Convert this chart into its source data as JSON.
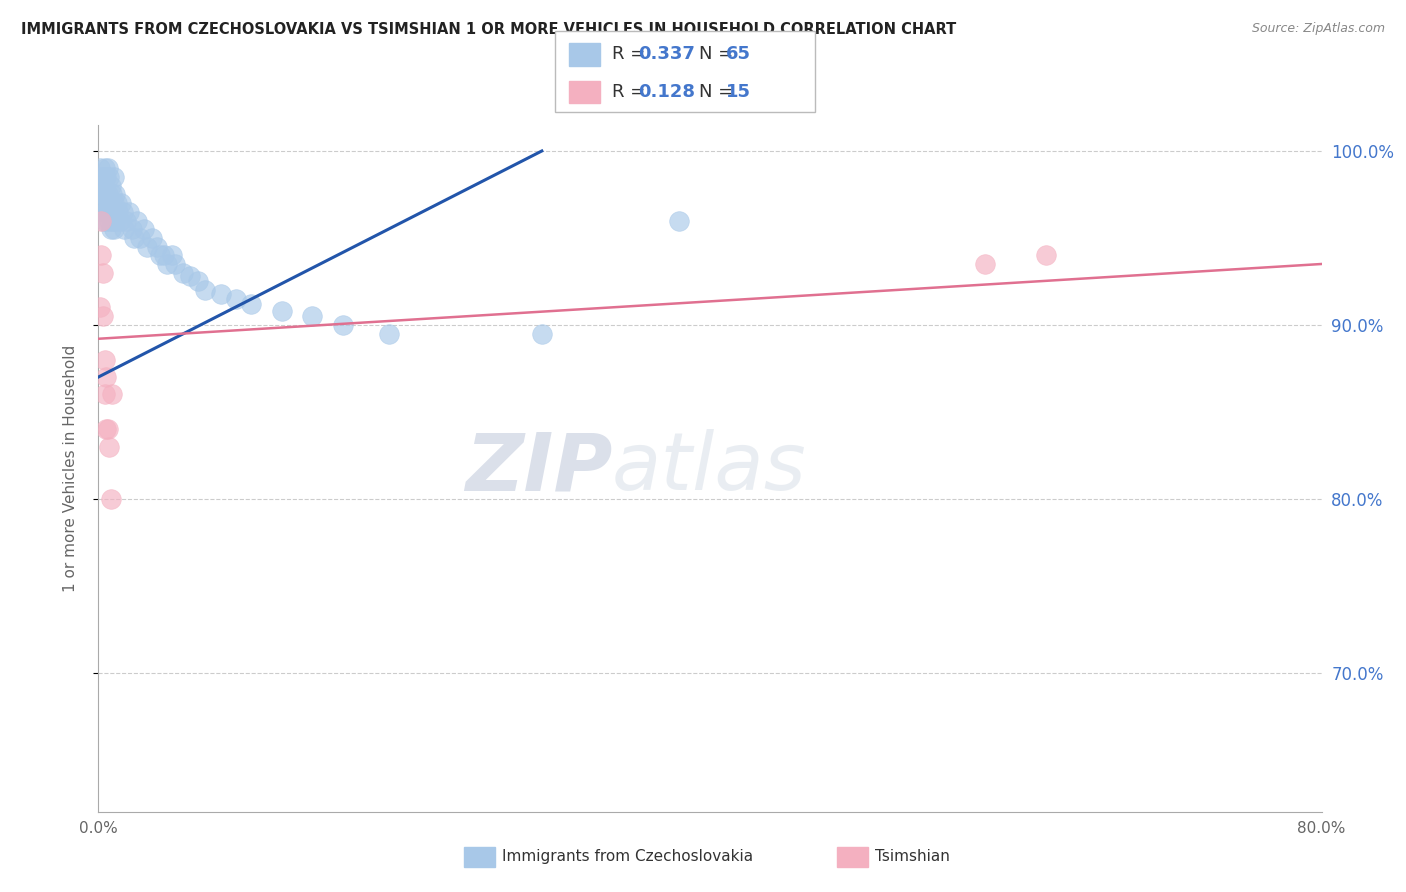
{
  "title": "IMMIGRANTS FROM CZECHOSLOVAKIA VS TSIMSHIAN 1 OR MORE VEHICLES IN HOUSEHOLD CORRELATION CHART",
  "source": "Source: ZipAtlas.com",
  "ylabel": "1 or more Vehicles in Household",
  "xlim": [
    0.0,
    0.8
  ],
  "ylim": [
    0.62,
    1.015
  ],
  "blue_R": "0.337",
  "blue_N": "65",
  "pink_R": "0.128",
  "pink_N": "15",
  "blue_color": "#a8c8e8",
  "pink_color": "#f4b0c0",
  "blue_line_color": "#2255aa",
  "pink_line_color": "#e07090",
  "legend_label_blue": "Immigrants from Czechoslovakia",
  "legend_label_pink": "Tsimshian",
  "watermark_zip": "ZIP",
  "watermark_atlas": "atlas",
  "grid_color": "#cccccc",
  "background_color": "#ffffff",
  "right_yticklabels": [
    "70.0%",
    "80.0%",
    "90.0%",
    "100.0%"
  ],
  "right_yticks": [
    0.7,
    0.8,
    0.9,
    1.0
  ],
  "blue_scatter_x": [
    0.001,
    0.001,
    0.002,
    0.002,
    0.002,
    0.003,
    0.003,
    0.003,
    0.004,
    0.004,
    0.004,
    0.004,
    0.005,
    0.005,
    0.005,
    0.006,
    0.006,
    0.006,
    0.007,
    0.007,
    0.007,
    0.008,
    0.008,
    0.008,
    0.009,
    0.009,
    0.01,
    0.01,
    0.01,
    0.011,
    0.011,
    0.012,
    0.013,
    0.014,
    0.015,
    0.016,
    0.017,
    0.018,
    0.02,
    0.022,
    0.023,
    0.025,
    0.027,
    0.03,
    0.032,
    0.035,
    0.038,
    0.04,
    0.043,
    0.045,
    0.048,
    0.05,
    0.055,
    0.06,
    0.065,
    0.07,
    0.08,
    0.09,
    0.1,
    0.12,
    0.14,
    0.16,
    0.19,
    0.29,
    0.38
  ],
  "blue_scatter_y": [
    0.99,
    0.975,
    0.985,
    0.98,
    0.97,
    0.98,
    0.975,
    0.96,
    0.99,
    0.985,
    0.97,
    0.965,
    0.985,
    0.975,
    0.96,
    0.99,
    0.975,
    0.965,
    0.985,
    0.97,
    0.96,
    0.98,
    0.965,
    0.955,
    0.975,
    0.96,
    0.985,
    0.97,
    0.955,
    0.975,
    0.96,
    0.97,
    0.965,
    0.96,
    0.97,
    0.965,
    0.955,
    0.96,
    0.965,
    0.955,
    0.95,
    0.96,
    0.95,
    0.955,
    0.945,
    0.95,
    0.945,
    0.94,
    0.94,
    0.935,
    0.94,
    0.935,
    0.93,
    0.928,
    0.925,
    0.92,
    0.918,
    0.915,
    0.912,
    0.908,
    0.905,
    0.9,
    0.895,
    0.895,
    0.96
  ],
  "pink_scatter_x": [
    0.001,
    0.002,
    0.002,
    0.003,
    0.003,
    0.004,
    0.004,
    0.005,
    0.005,
    0.006,
    0.007,
    0.008,
    0.009,
    0.58,
    0.62
  ],
  "pink_scatter_y": [
    0.91,
    0.96,
    0.94,
    0.93,
    0.905,
    0.88,
    0.86,
    0.84,
    0.87,
    0.84,
    0.83,
    0.8,
    0.86,
    0.935,
    0.94
  ],
  "blue_trend_x": [
    0.0,
    0.29
  ],
  "blue_trend_y": [
    0.87,
    1.0
  ],
  "pink_trend_x": [
    0.0,
    0.8
  ],
  "pink_trend_y": [
    0.892,
    0.935
  ]
}
